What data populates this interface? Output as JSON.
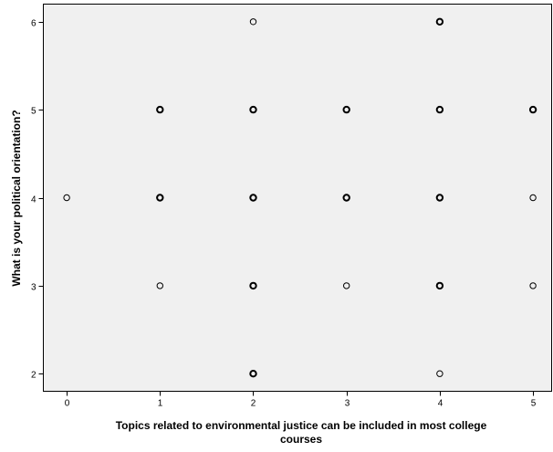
{
  "chart_data": {
    "type": "scatter",
    "xlabel_lines": [
      "Topics related to environmental justice can be included in most college",
      "courses"
    ],
    "ylabel": "What is your political orientation?",
    "xlim": [
      -0.25,
      5.2
    ],
    "ylim": [
      1.8,
      6.2
    ],
    "xticks": [
      0,
      1,
      2,
      3,
      4,
      5
    ],
    "yticks": [
      2,
      3,
      4,
      5,
      6
    ],
    "grid": false,
    "points": [
      {
        "x": 0,
        "y": 4,
        "bold": false
      },
      {
        "x": 1,
        "y": 3,
        "bold": false
      },
      {
        "x": 1,
        "y": 4,
        "bold": true
      },
      {
        "x": 1,
        "y": 5,
        "bold": true
      },
      {
        "x": 2,
        "y": 2,
        "bold": true
      },
      {
        "x": 2,
        "y": 3,
        "bold": true
      },
      {
        "x": 2,
        "y": 4,
        "bold": true
      },
      {
        "x": 2,
        "y": 5,
        "bold": true
      },
      {
        "x": 2,
        "y": 6,
        "bold": false
      },
      {
        "x": 3,
        "y": 3,
        "bold": false
      },
      {
        "x": 3,
        "y": 4,
        "bold": true
      },
      {
        "x": 3,
        "y": 5,
        "bold": true
      },
      {
        "x": 4,
        "y": 2,
        "bold": false
      },
      {
        "x": 4,
        "y": 3,
        "bold": true
      },
      {
        "x": 4,
        "y": 4,
        "bold": true
      },
      {
        "x": 4,
        "y": 5,
        "bold": true
      },
      {
        "x": 4,
        "y": 6,
        "bold": true
      },
      {
        "x": 5,
        "y": 3,
        "bold": false
      },
      {
        "x": 5,
        "y": 4,
        "bold": false
      },
      {
        "x": 5,
        "y": 5,
        "bold": true
      }
    ],
    "colors": {
      "background": "#f0f0f0",
      "marker": "#000000",
      "axis": "#000000"
    }
  }
}
